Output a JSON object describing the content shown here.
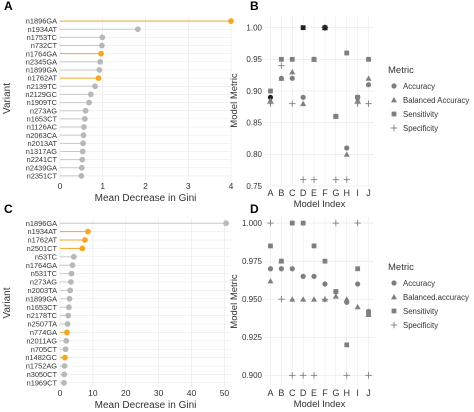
{
  "colors": {
    "highlight": "#f5a623",
    "normal": "#b8b8b8",
    "stem_normal": "#c8c8c8",
    "grid": "#e6e6e6",
    "panel_bg": "#ffffff",
    "point": "#7f7f7f",
    "dark_point": "#222222"
  },
  "chart_data": [
    {
      "panel": "A",
      "type": "lollipop",
      "orientation": "horizontal",
      "ylabel": "Variant",
      "xlabel": "Mean Decrease in Gini",
      "xlim": [
        0,
        4
      ],
      "xticks": [
        0,
        1,
        2,
        3,
        4
      ],
      "categories": [
        "n1896GA",
        "n1934AT",
        "n1753TC",
        "n732CT",
        "n1764GA",
        "n2345GA",
        "n1899GA",
        "n1762AT",
        "n2139TC",
        "n2129GC",
        "n1909TC",
        "n273AG",
        "n1653CT",
        "n1126AC",
        "n2063CA",
        "n2013AT",
        "n1317AG",
        "n2241CT",
        "n2439GA",
        "n2351CT"
      ],
      "values": [
        4.0,
        1.82,
        0.99,
        0.98,
        0.96,
        0.94,
        0.92,
        0.9,
        0.82,
        0.72,
        0.68,
        0.6,
        0.58,
        0.56,
        0.55,
        0.54,
        0.53,
        0.52,
        0.51,
        0.5
      ],
      "highlighted": [
        "n1896GA",
        "n1764GA",
        "n1762AT"
      ]
    },
    {
      "panel": "B",
      "type": "scatter",
      "xlabel": "Model Index",
      "ylabel": "Model Metric",
      "ylim": [
        0.75,
        1.02
      ],
      "yticks": [
        "0.75",
        "0.80",
        "0.85",
        "0.90",
        "0.95",
        "1.00"
      ],
      "categories": [
        "A",
        "B",
        "C",
        "D",
        "E",
        "F",
        "G",
        "H",
        "I",
        "J"
      ],
      "legend_title": "Metric",
      "legend_position": "right",
      "series": [
        {
          "name": "Accuracy",
          "marker": "circle",
          "values": [
            0.89,
            0.92,
            0.92,
            0.89,
            0.95,
            1.0,
            0.86,
            0.81,
            0.89,
            0.91
          ]
        },
        {
          "name": "Balanced Accuracy",
          "marker": "triangle",
          "values": [
            0.885,
            0.92,
            0.93,
            0.88,
            0.95,
            1.0,
            0.86,
            0.8,
            0.885,
            0.92
          ]
        },
        {
          "name": "Sensitivity",
          "marker": "square",
          "values": [
            0.9,
            0.95,
            0.95,
            1.0,
            0.95,
            1.0,
            0.86,
            0.96,
            0.89,
            0.95
          ]
        },
        {
          "name": "Specificity",
          "marker": "plus",
          "values": [
            0.88,
            0.94,
            0.88,
            0.76,
            0.76,
            1.0,
            0.76,
            0.76,
            0.88,
            0.88
          ]
        }
      ]
    },
    {
      "panel": "C",
      "type": "lollipop",
      "orientation": "horizontal",
      "ylabel": "Variant",
      "xlabel": "Mean Decrease in Gini",
      "xlim": [
        0,
        52
      ],
      "xticks": [
        0,
        10,
        20,
        30,
        40,
        50
      ],
      "categories": [
        "n1896GA",
        "n1934AT",
        "n1762AT",
        "n2501CT",
        "n53TC",
        "n1764GA",
        "n531TC",
        "n273AG",
        "n2003TA",
        "n1899GA",
        "n1653CT",
        "n2178TC",
        "n2507TA",
        "n774GA",
        "n2011AG",
        "n705CT",
        "n1482GC",
        "n1752AG",
        "n3050CT",
        "n1969CT"
      ],
      "values": [
        50.5,
        8.5,
        7.6,
        6.8,
        4.2,
        3.8,
        3.5,
        3.3,
        3.1,
        2.9,
        2.7,
        2.5,
        2.3,
        2.1,
        1.9,
        1.7,
        1.5,
        1.4,
        1.3,
        1.2
      ],
      "highlighted": [
        "n1934AT",
        "n1762AT",
        "n2501CT",
        "n774GA",
        "n1482GC"
      ]
    },
    {
      "panel": "D",
      "type": "scatter",
      "xlabel": "Model Index",
      "ylabel": "Model Metric",
      "ylim": [
        0.893,
        1.004
      ],
      "yticks": [
        "0.900",
        "0.925",
        "0.950",
        "0.975",
        "1.000"
      ],
      "categories": [
        "A",
        "B",
        "C",
        "D",
        "E",
        "F",
        "G",
        "H",
        "I",
        "J"
      ],
      "legend_title": "Metric",
      "legend_position": "right",
      "series": [
        {
          "name": "Accuracy",
          "marker": "circle",
          "values": [
            0.97,
            0.97,
            0.97,
            0.965,
            0.965,
            0.96,
            0.955,
            0.948,
            0.96,
            0.942
          ]
        },
        {
          "name": "Balanced.accuracy",
          "marker": "triangle",
          "values": [
            0.962,
            0.975,
            0.95,
            0.95,
            0.95,
            0.95,
            0.952,
            0.95,
            0.945,
            0.94
          ]
        },
        {
          "name": "Sensitivity",
          "marker": "square",
          "values": [
            0.985,
            0.975,
            1.0,
            1.0,
            0.985,
            0.975,
            0.955,
            0.92,
            0.97,
            0.94
          ]
        },
        {
          "name": "Specificity",
          "marker": "plus",
          "values": [
            1.0,
            0.95,
            0.9,
            0.9,
            0.9,
            0.95,
            1.0,
            0.9,
            1.0,
            0.9
          ]
        }
      ]
    }
  ],
  "panels": {
    "A": "A",
    "B": "B",
    "C": "C",
    "D": "D"
  }
}
